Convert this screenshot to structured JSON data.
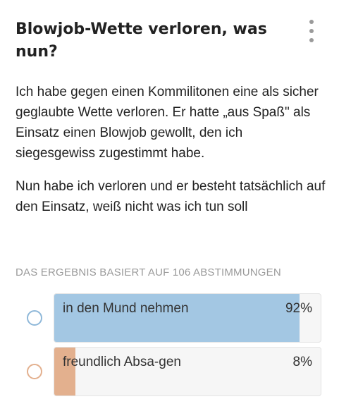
{
  "post": {
    "title": "Blowjob-Wette verloren, was nun?",
    "paragraphs": [
      "Ich habe gegen einen Kommilitonen eine als sicher geglaubte Wette verloren. Er hatte „aus Spaß\" als Einsatz einen Blowjob gewollt, den ich siegesgewiss zugestimmt habe.",
      "Nun habe ich verloren und er besteht tatsächlich auf den Einsatz, weiß nicht was ich tun soll"
    ]
  },
  "menu": {
    "icon": "more-vertical-icon"
  },
  "poll": {
    "result_label": "DAS ERGEBNIS BASIERT AUF 106 ABSTIMMUNGEN",
    "options": [
      {
        "label": "in den Mund nehmen",
        "percent_text": "92%",
        "fraction": 0.92,
        "color": "#a3c7e3",
        "radio_color": "#8fb8d9"
      },
      {
        "label": "freundlich Absa-gen",
        "percent_text": "8%",
        "fraction": 0.08,
        "color": "#e3b08e",
        "radio_color": "#e3b08e"
      }
    ]
  }
}
